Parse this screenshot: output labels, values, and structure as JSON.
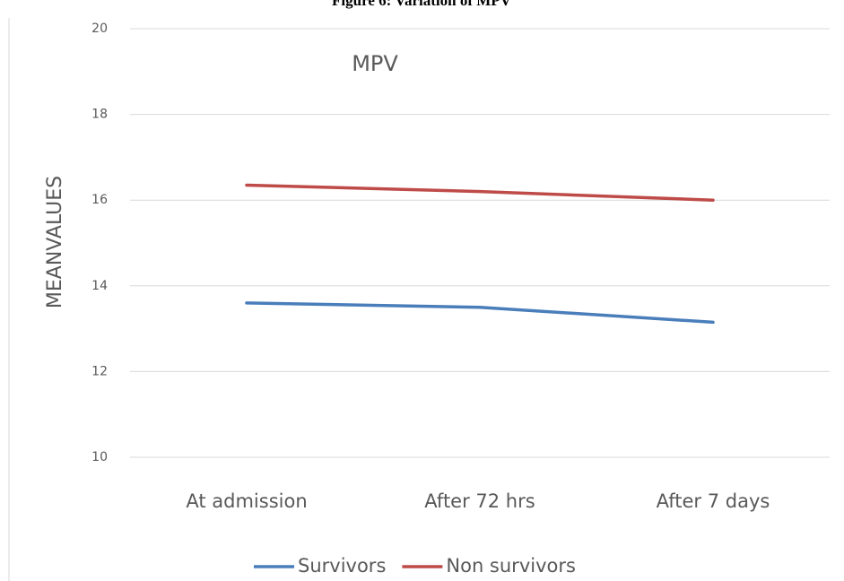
{
  "chart_data": {
    "type": "line",
    "figure_title": "Figure 6: Variation of MPV",
    "title": "MPV",
    "y_label": "MEANVALUES",
    "categories": [
      "At admission",
      "After 72 hrs",
      "After 7 days"
    ],
    "series": [
      {
        "name": "Survivors",
        "color": "#4a7ebb",
        "values": [
          13.6,
          13.5,
          13.15
        ]
      },
      {
        "name": "Non survivors",
        "color": "#be4b48",
        "values": [
          16.35,
          16.2,
          16.0
        ]
      }
    ],
    "ylim": [
      10,
      20
    ],
    "yticks": [
      10,
      12,
      14,
      16,
      18,
      20
    ],
    "grid": true,
    "legend": "bottom"
  }
}
